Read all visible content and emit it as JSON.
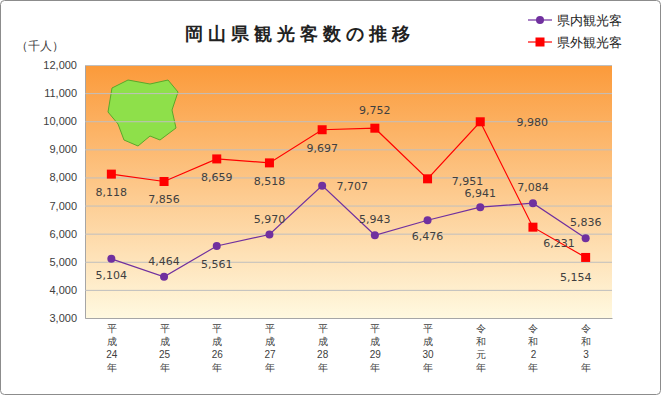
{
  "chart_data": {
    "type": "line",
    "title": "岡山県観光客数の推移",
    "y_label": "（千人）",
    "categories": [
      "平成24年",
      "平成25年",
      "平成26年",
      "平成27年",
      "平成28年",
      "平成29年",
      "平成30年",
      "令和元年",
      "令和2年",
      "令和3年"
    ],
    "series": [
      {
        "name": "県内観光客",
        "color": "#70309f",
        "marker": "circle",
        "values": [
          5104,
          4464,
          5561,
          5970,
          7707,
          5943,
          6476,
          6941,
          7084,
          5836
        ],
        "value_labels": [
          "5,104",
          "4,464",
          "5,561",
          "5,970",
          "7,707",
          "5,943",
          "6,476",
          "6,941",
          "7,084",
          "5,836"
        ]
      },
      {
        "name": "県外観光客",
        "color": "#ff0000",
        "marker": "square",
        "values": [
          8118,
          7856,
          8659,
          8518,
          9697,
          9752,
          7951,
          9980,
          6231,
          5154
        ],
        "value_labels": [
          "8,118",
          "7,856",
          "8,659",
          "8,518",
          "9,697",
          "9,752",
          "7,951",
          "9,980",
          "6,231",
          "5,154"
        ]
      }
    ],
    "ylim": [
      3000,
      12000
    ],
    "yticks": [
      {
        "value": 3000,
        "label": "3,000"
      },
      {
        "value": 4000,
        "label": "4,000"
      },
      {
        "value": 5000,
        "label": "5,000"
      },
      {
        "value": 6000,
        "label": "6,000"
      },
      {
        "value": 7000,
        "label": "7,000"
      },
      {
        "value": 8000,
        "label": "8,000"
      },
      {
        "value": 9000,
        "label": "9,000"
      },
      {
        "value": 10000,
        "label": "10,000"
      },
      {
        "value": 11000,
        "label": "11,000"
      },
      {
        "value": 12000,
        "label": "12,000"
      }
    ],
    "grid": true,
    "legend": "upper right",
    "data_labels": true
  }
}
